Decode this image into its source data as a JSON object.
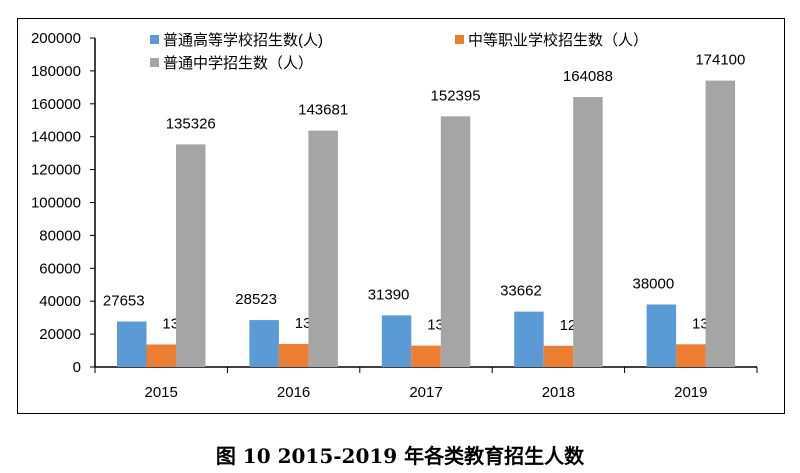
{
  "chart_data": {
    "type": "bar",
    "title": "图 10  2015-2019 年各类教育招生人数",
    "categories": [
      "2015",
      "2016",
      "2017",
      "2018",
      "2019"
    ],
    "series": [
      {
        "name": "普通高等学校招生数(人)",
        "color": "#5B9BD5",
        "values": [
          27653,
          28523,
          31390,
          33662,
          38000
        ]
      },
      {
        "name": "中等职业学校招生数（人）",
        "color": "#ED7D31",
        "values": [
          13691,
          13964,
          13005,
          12875,
          13800
        ]
      },
      {
        "name": "普通中学招生数（人）",
        "color": "#A5A5A5",
        "values": [
          135326,
          143681,
          152395,
          164088,
          174100
        ]
      }
    ],
    "ylim": [
      0,
      200000
    ],
    "yticks": [
      0,
      20000,
      40000,
      60000,
      80000,
      100000,
      120000,
      140000,
      160000,
      180000,
      200000
    ],
    "xlabel": "",
    "ylabel": "",
    "grid": false,
    "legend": "top"
  }
}
